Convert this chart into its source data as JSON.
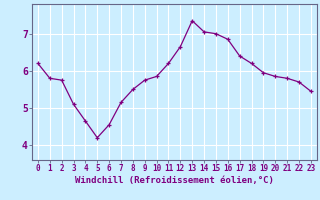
{
  "x": [
    0,
    1,
    2,
    3,
    4,
    5,
    6,
    7,
    8,
    9,
    10,
    11,
    12,
    13,
    14,
    15,
    16,
    17,
    18,
    19,
    20,
    21,
    22,
    23
  ],
  "y": [
    6.2,
    5.8,
    5.75,
    5.1,
    4.65,
    4.2,
    4.55,
    5.15,
    5.5,
    5.75,
    5.85,
    6.2,
    6.65,
    7.35,
    7.05,
    7.0,
    6.85,
    6.4,
    6.2,
    5.95,
    5.85,
    5.8,
    5.7,
    5.45
  ],
  "line_color": "#800080",
  "marker": "+",
  "marker_size": 3,
  "background_color": "#cceeff",
  "grid_color": "#ffffff",
  "xlabel": "Windchill (Refroidissement éolien,°C)",
  "xlabel_color": "#800080",
  "ylabel_ticks": [
    4,
    5,
    6,
    7
  ],
  "xtick_labels": [
    "0",
    "1",
    "2",
    "3",
    "4",
    "5",
    "6",
    "7",
    "8",
    "9",
    "10",
    "11",
    "12",
    "13",
    "14",
    "15",
    "16",
    "17",
    "18",
    "19",
    "20",
    "21",
    "22",
    "23"
  ],
  "ylim": [
    3.6,
    7.8
  ],
  "xlim": [
    -0.5,
    23.5
  ],
  "tick_color": "#800080",
  "label_fontsize": 6.5,
  "tick_fontsize": 5.5,
  "linewidth": 0.9
}
